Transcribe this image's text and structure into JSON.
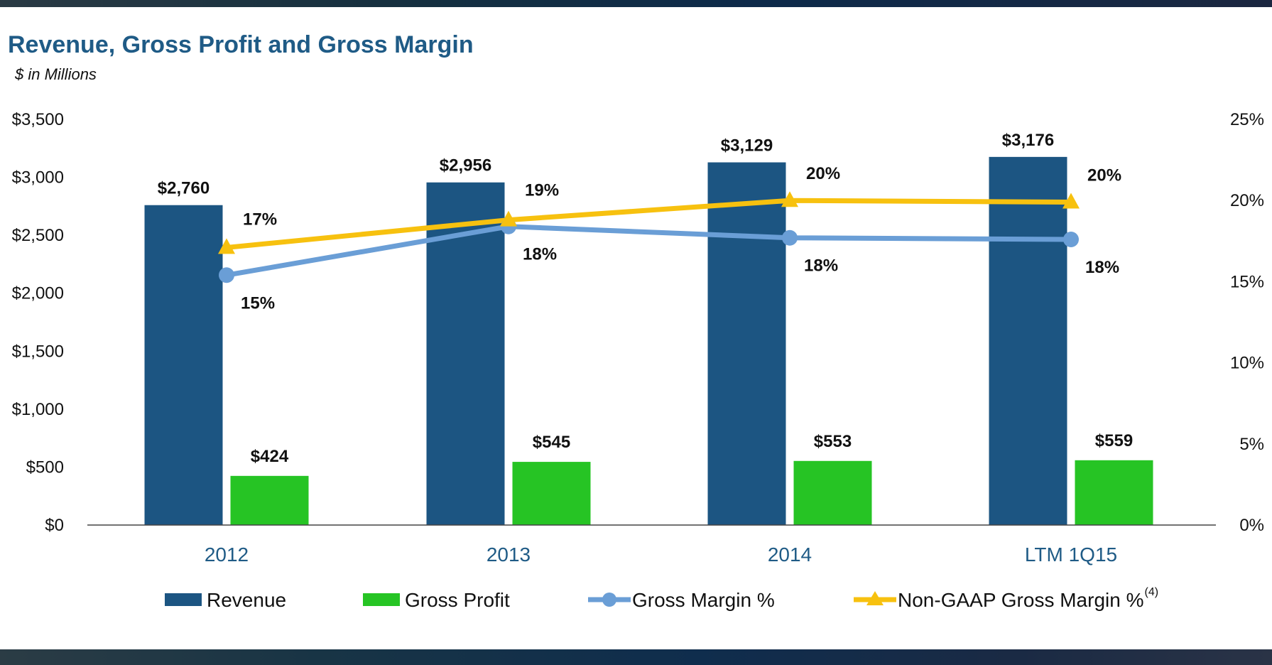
{
  "title": "Revenue, Gross Profit and Gross Margin",
  "subtitle": "$ in Millions",
  "chart_data": {
    "type": "bar",
    "title": "Revenue, Gross Profit and Gross Margin",
    "subtitle": "$ in Millions",
    "categories": [
      "2012",
      "2013",
      "2014",
      "LTM 1Q15"
    ],
    "y_left": {
      "range": [
        0,
        3500
      ],
      "ticks": [
        0,
        500,
        1000,
        1500,
        2000,
        2500,
        3000,
        3500
      ],
      "tick_labels": [
        "$0",
        "$500",
        "$1,000",
        "$1,500",
        "$2,000",
        "$2,500",
        "$3,000",
        "$3,500"
      ]
    },
    "y_right": {
      "range": [
        0,
        25
      ],
      "ticks": [
        0,
        5,
        10,
        15,
        20,
        25
      ],
      "tick_labels": [
        "0%",
        "5%",
        "10%",
        "15%",
        "20%",
        "25%"
      ]
    },
    "series": [
      {
        "name": "Revenue",
        "type": "bar",
        "axis": "left",
        "color": "#1c5582",
        "values": [
          2760,
          2956,
          3129,
          3176
        ],
        "labels": [
          "$2,760",
          "$2,956",
          "$3,129",
          "$3,176"
        ]
      },
      {
        "name": "Gross Profit",
        "type": "bar",
        "axis": "left",
        "color": "#26c424",
        "values": [
          424,
          545,
          553,
          559
        ],
        "labels": [
          "$424",
          "$545",
          "$553",
          "$559"
        ]
      },
      {
        "name": "Gross Margin %",
        "type": "line",
        "marker": "circle",
        "axis": "right",
        "color": "#6a9ed6",
        "values": [
          15.4,
          18.4,
          17.7,
          17.6
        ],
        "labels": [
          "15%",
          "18%",
          "18%",
          "18%"
        ]
      },
      {
        "name": "Non-GAAP Gross Margin %",
        "superscript": "(4)",
        "type": "line",
        "marker": "triangle",
        "axis": "right",
        "color": "#f7c10f",
        "values": [
          17.1,
          18.8,
          20.0,
          19.9
        ],
        "labels": [
          "17%",
          "19%",
          "20%",
          "20%"
        ]
      }
    ],
    "legend": "bottom",
    "grid": false
  }
}
